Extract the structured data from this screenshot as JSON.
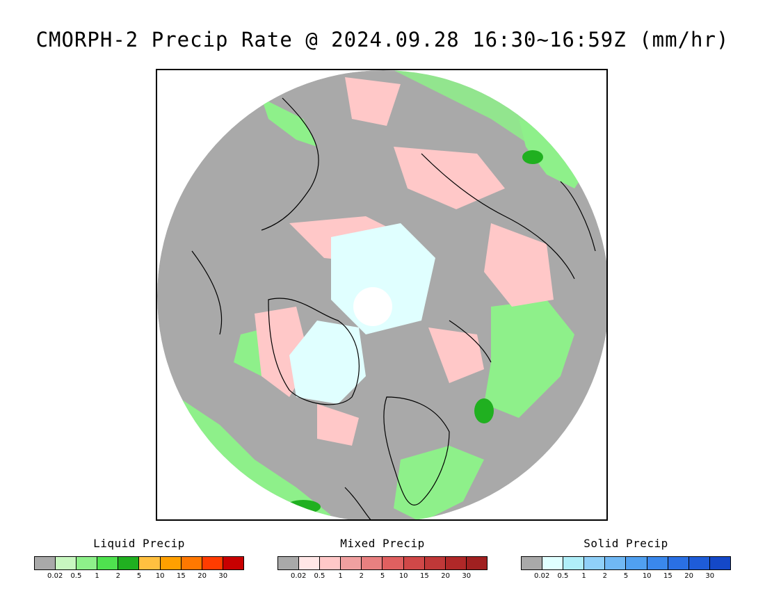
{
  "title": "CMORPH-2 Precip Rate @ 2024.09.28 16:30~16:59Z (mm/hr)",
  "map": {
    "projection": "polar stereographic (north pole)",
    "ocean_color": "#a9a9a9",
    "coastline_color": "#000000"
  },
  "legends": [
    {
      "title": "Liquid Precip",
      "colors": [
        "#a9a9a9",
        "#c8f7c0",
        "#8ef08a",
        "#4fe24f",
        "#20b020",
        "#ffc040",
        "#ffa000",
        "#ff7800",
        "#ff3c00",
        "#c80000"
      ],
      "ticks": [
        "0.02",
        "0.5",
        "1",
        "2",
        "5",
        "10",
        "15",
        "20",
        "30"
      ]
    },
    {
      "title": "Mixed Precip",
      "colors": [
        "#a9a9a9",
        "#ffe6e6",
        "#ffc8c8",
        "#f0a0a0",
        "#e88080",
        "#e06060",
        "#d04848",
        "#c03838",
        "#b02828",
        "#a02020"
      ],
      "ticks": [
        "0.02",
        "0.5",
        "1",
        "2",
        "5",
        "10",
        "15",
        "20",
        "30"
      ]
    },
    {
      "title": "Solid Precip",
      "colors": [
        "#a9a9a9",
        "#e0ffff",
        "#b0eef8",
        "#90d0f8",
        "#70b8f4",
        "#50a0f0",
        "#3a88ec",
        "#2a70e4",
        "#1e5cd8",
        "#1448c8"
      ],
      "ticks": [
        "0.02",
        "0.5",
        "1",
        "2",
        "5",
        "10",
        "15",
        "20",
        "30"
      ]
    }
  ]
}
